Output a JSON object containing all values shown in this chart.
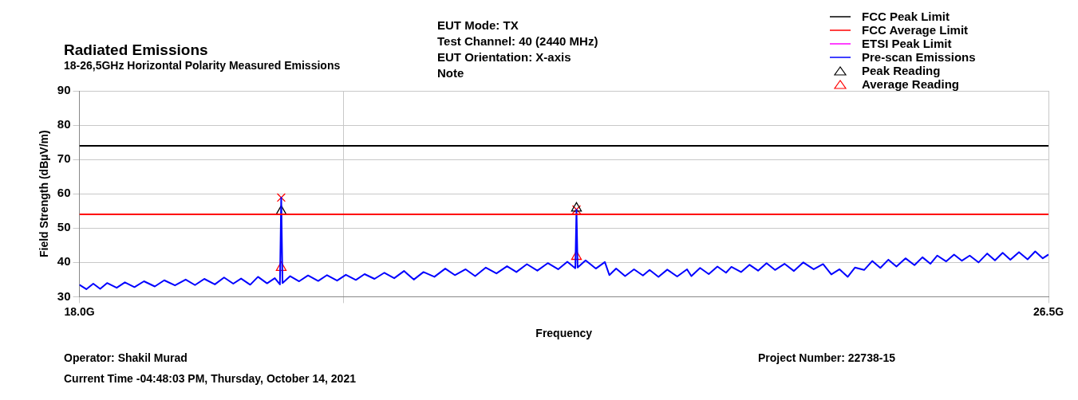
{
  "chart_data": {
    "type": "line",
    "title": "Radiated Emissions",
    "subtitle": "18-26,5GHz Horizontal Polarity Measured Emissions",
    "xlabel": "Frequency",
    "ylabel": "Field Strength (dBµV/m)",
    "annotations": [
      "EUT Mode: TX",
      "Test Channel: 40 (2440 MHz)",
      "EUT Orientation: X-axis",
      "Note",
      "Operator: Shakil Murad",
      "Current Time -04:48:03 PM, Thursday, October 14, 2021",
      "Project Number: 22738-15"
    ],
    "log": "x",
    "xlim": [
      18,
      26.5
    ],
    "xticks": [
      {
        "value": 18,
        "label": "18.0G"
      },
      {
        "value": 20,
        "label": null
      },
      {
        "value": 26.5,
        "label": "26.5G"
      }
    ],
    "ylim": [
      30,
      90
    ],
    "yticks": [
      30,
      40,
      50,
      60,
      70,
      80,
      90
    ],
    "grid": true,
    "legend": "top right",
    "line_style": "solid",
    "series": [
      {
        "name": "FCC Peak Limit",
        "color": "#000000",
        "marker": "none",
        "x": [
          18,
          26.5
        ],
        "values": [
          74,
          74
        ]
      },
      {
        "name": "FCC Average Limit",
        "color": "#ff0000",
        "marker": "none",
        "x": [
          18,
          26.5
        ],
        "values": [
          54,
          54
        ]
      },
      {
        "name": "ETSI Peak Limit",
        "color": "#ff00ff",
        "marker": "none"
      },
      {
        "name": "Pre-scan Emissions",
        "color": "#0000ff",
        "marker": "none",
        "x": [
          18.0,
          18.05,
          18.1,
          18.15,
          18.2,
          18.27,
          18.33,
          18.4,
          18.47,
          18.55,
          18.62,
          18.7,
          18.78,
          18.85,
          18.92,
          19.0,
          19.07,
          19.14,
          19.2,
          19.27,
          19.33,
          19.4,
          19.46,
          19.5,
          19.51,
          19.52,
          19.58,
          19.65,
          19.72,
          19.8,
          19.87,
          19.95,
          20.02,
          20.1,
          20.17,
          20.25,
          20.33,
          20.41,
          20.49,
          20.57,
          20.65,
          20.74,
          20.83,
          20.91,
          21.0,
          21.08,
          21.17,
          21.26,
          21.35,
          21.43,
          21.52,
          21.61,
          21.7,
          21.79,
          21.87,
          21.94,
          21.95,
          21.96,
          22.03,
          22.12,
          22.2,
          22.24,
          22.3,
          22.38,
          22.46,
          22.54,
          22.6,
          22.68,
          22.76,
          22.85,
          22.94,
          22.98,
          23.06,
          23.14,
          23.22,
          23.3,
          23.35,
          23.44,
          23.52,
          23.6,
          23.68,
          23.76,
          23.85,
          23.94,
          24.03,
          24.13,
          24.22,
          24.3,
          24.38,
          24.46,
          24.53,
          24.62,
          24.7,
          24.78,
          24.86,
          24.94,
          25.03,
          25.12,
          25.2,
          25.28,
          25.35,
          25.44,
          25.52,
          25.6,
          25.68,
          25.77,
          25.86,
          25.94,
          26.02,
          26.1,
          26.19,
          26.28,
          26.36,
          26.44,
          26.5
        ],
        "values": [
          33.5,
          32.2,
          33.8,
          32.3,
          34.0,
          32.6,
          34.2,
          32.8,
          34.5,
          33.0,
          34.8,
          33.3,
          35.0,
          33.4,
          35.2,
          33.6,
          35.6,
          33.8,
          35.3,
          33.5,
          35.8,
          33.9,
          35.4,
          33.6,
          58.9,
          34.0,
          36.0,
          34.5,
          36.2,
          34.6,
          36.3,
          34.7,
          36.4,
          34.9,
          36.6,
          35.2,
          37.0,
          35.4,
          37.5,
          35.0,
          37.2,
          35.8,
          38.2,
          36.3,
          38.0,
          36.0,
          38.5,
          36.8,
          38.9,
          37.2,
          39.5,
          37.6,
          39.8,
          38.0,
          40.2,
          38.3,
          55.4,
          38.5,
          40.6,
          38.2,
          40.1,
          36.3,
          38.2,
          36.0,
          38.0,
          36.2,
          37.8,
          35.8,
          37.9,
          35.9,
          38.0,
          36.0,
          38.4,
          36.6,
          38.8,
          37.0,
          38.7,
          37.2,
          39.3,
          37.6,
          39.8,
          37.8,
          39.6,
          37.5,
          40.0,
          38.0,
          39.5,
          36.5,
          38.0,
          35.8,
          38.5,
          37.8,
          40.4,
          38.4,
          40.8,
          38.8,
          41.2,
          39.2,
          41.5,
          39.6,
          42.0,
          40.3,
          42.3,
          40.5,
          42.0,
          40.0,
          42.6,
          40.6,
          42.8,
          40.8,
          43.0,
          40.9,
          43.2,
          41.2,
          42.3
        ]
      },
      {
        "name": "Peak Reading",
        "type": "scatter",
        "color": "#000000",
        "marker": "triangle",
        "x": [
          19.51,
          21.95
        ],
        "values": [
          54.9,
          55.8
        ]
      },
      {
        "name": "Average Reading",
        "type": "scatter",
        "color": "#ff0000",
        "marker": "triangle",
        "x": [
          19.51,
          21.95
        ],
        "values": [
          38.5,
          41.7
        ]
      },
      {
        "type": "scatter",
        "color": "#ff0000",
        "marker": "cross",
        "x": [
          19.51,
          21.95
        ],
        "values": [
          58.9,
          55.4
        ]
      }
    ]
  }
}
